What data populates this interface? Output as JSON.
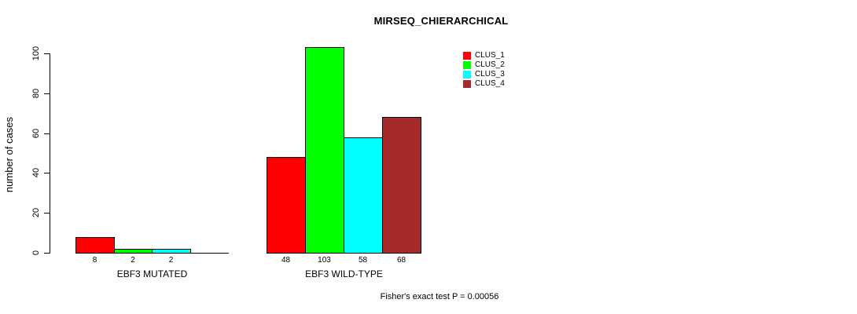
{
  "chart_data": {
    "type": "bar",
    "title": "MIRSEQ_CHIERARCHICAL",
    "ylabel": "number of cases",
    "xlabel": "",
    "ylim": [
      0,
      100
    ],
    "yticks": [
      0,
      20,
      40,
      60,
      80,
      100
    ],
    "grid": false,
    "legend_position": "top-right",
    "series": [
      "CLUS_1",
      "CLUS_2",
      "CLUS_3",
      "CLUS_4"
    ],
    "colors": [
      "#ff0000",
      "#00ff00",
      "#00ffff",
      "#a52a2a"
    ],
    "bar_border_color": "#000000",
    "categories": [
      "EBF3 MUTATED",
      "EBF3 WILD-TYPE"
    ],
    "groups": [
      {
        "label": "EBF3 MUTATED",
        "values": [
          8,
          2,
          2,
          0
        ]
      },
      {
        "label": "EBF3 WILD-TYPE",
        "values": [
          48,
          103,
          58,
          68
        ]
      }
    ],
    "annotation": "Fisher's exact test P = 0.00056"
  }
}
